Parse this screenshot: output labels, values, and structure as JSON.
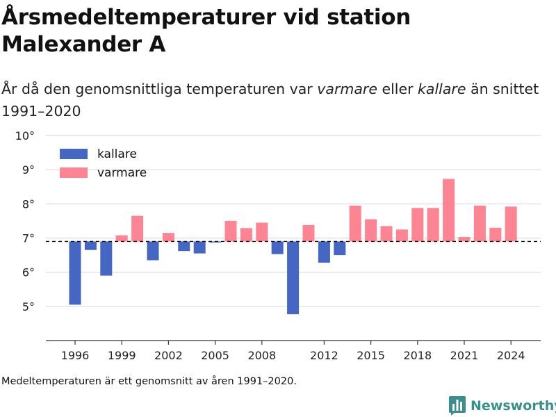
{
  "header": {
    "title": "Årsmedeltemperaturer vid station Malexander A",
    "subtitle_pre": "År då den genomsnittliga temperaturen var ",
    "subtitle_warm": "varmare",
    "subtitle_mid": " eller ",
    "subtitle_cold": "kallare",
    "subtitle_post": " än snittet 1991–2020"
  },
  "footer": {
    "note": "Medeltemperaturen är ett genomsnitt av åren 1991–2020.",
    "brand": "Newsworthy",
    "brand_icon": "bar-chart-logo-icon",
    "brand_color": "#3a8f8d"
  },
  "chart_data": {
    "type": "bar",
    "title": "Årsmedeltemperaturer vid station Malexander A",
    "xlabel": "",
    "ylabel": "",
    "baseline": 6.9,
    "ylim": [
      4.0,
      10.0
    ],
    "yticks": [
      5,
      6,
      7,
      8,
      9,
      10
    ],
    "ytick_labels": [
      "5°",
      "6°",
      "7°",
      "8°",
      "9°",
      "10°"
    ],
    "xticks": [
      1996,
      1999,
      2002,
      2005,
      2008,
      2012,
      2015,
      2018,
      2021,
      2024
    ],
    "xtick_labels": [
      "1996",
      "1999",
      "2002",
      "2005",
      "2008",
      "2012",
      "2015",
      "2018",
      "2021",
      "2024"
    ],
    "grid": true,
    "legend_position": "top-left",
    "colors": {
      "kallare": "#4566c2",
      "varmare": "#fd8593"
    },
    "series": [
      {
        "name": "kallare",
        "color": "#4566c2"
      },
      {
        "name": "varmare",
        "color": "#fd8593"
      }
    ],
    "categories": [
      1996,
      1997,
      1998,
      1999,
      2000,
      2001,
      2002,
      2003,
      2004,
      2005,
      2006,
      2007,
      2008,
      2009,
      2010,
      2011,
      2012,
      2013,
      2014,
      2015,
      2016,
      2017,
      2018,
      2019,
      2020,
      2021,
      2022,
      2023,
      2024
    ],
    "values": [
      5.05,
      6.65,
      5.9,
      7.08,
      7.65,
      6.35,
      7.15,
      6.62,
      6.55,
      6.87,
      7.5,
      7.29,
      7.45,
      6.53,
      4.77,
      7.38,
      6.28,
      6.5,
      7.95,
      7.55,
      7.35,
      7.25,
      7.88,
      7.88,
      8.73,
      7.03,
      7.95,
      7.3,
      7.92
    ]
  }
}
